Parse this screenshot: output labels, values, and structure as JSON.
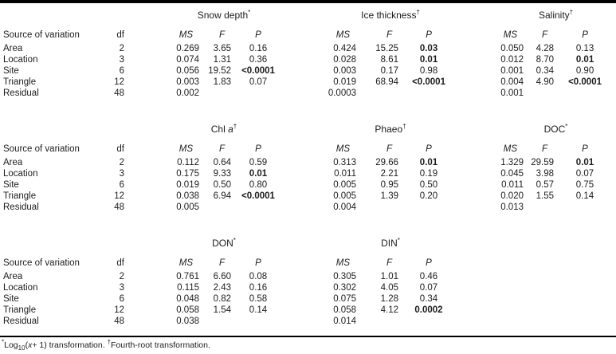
{
  "table": {
    "source_header": "Source of variation",
    "df_header": "df",
    "stat_headers": {
      "ms": "MS",
      "f": "F",
      "p": "P"
    },
    "row_labels": [
      "Area",
      "Location",
      "Site",
      "Triangle",
      "Residual"
    ],
    "df_values": [
      "2",
      "3",
      "6",
      "12",
      "48"
    ],
    "sections": [
      {
        "groups": [
          {
            "title": "Snow depth",
            "title_italic": "",
            "mark": "*",
            "ms": [
              "0.269",
              "0.074",
              "0.056",
              "0.003",
              "0.002"
            ],
            "f": [
              "3.65",
              "1.31",
              "19.52",
              "1.83",
              ""
            ],
            "p": [
              "0.16",
              "0.36",
              "<0.0001",
              "0.07",
              ""
            ],
            "p_bold": [
              false,
              false,
              true,
              false,
              false
            ]
          },
          {
            "title": "Ice thickness",
            "title_italic": "",
            "mark": "†",
            "ms": [
              "0.424",
              "0.028",
              "0.003",
              "0.019",
              "0.0003"
            ],
            "f": [
              "15.25",
              "8.61",
              "0.17",
              "68.94",
              ""
            ],
            "p": [
              "0.03",
              "0.01",
              "0.98",
              "<0.0001",
              ""
            ],
            "p_bold": [
              true,
              true,
              false,
              true,
              false
            ]
          },
          {
            "title": "Salinity",
            "title_italic": "",
            "mark": "†",
            "ms": [
              "0.050",
              "0.012",
              "0.001",
              "0.004",
              "0.001"
            ],
            "f": [
              "4.28",
              "8.70",
              "0.34",
              "4.90",
              ""
            ],
            "p": [
              "0.13",
              "0.01",
              "0.90",
              "<0.0001",
              ""
            ],
            "p_bold": [
              false,
              true,
              false,
              true,
              false
            ]
          }
        ]
      },
      {
        "groups": [
          {
            "title": "Chl ",
            "title_italic": "a",
            "mark": "†",
            "ms": [
              "0.112",
              "0.175",
              "0.019",
              "0.038",
              "0.005"
            ],
            "f": [
              "0.64",
              "9.33",
              "0.50",
              "6.94",
              ""
            ],
            "p": [
              "0.59",
              "0.01",
              "0.80",
              "<0.0001",
              ""
            ],
            "p_bold": [
              false,
              true,
              false,
              true,
              false
            ]
          },
          {
            "title": "Phaeo",
            "title_italic": "",
            "mark": "†",
            "ms": [
              "0.313",
              "0.011",
              "0.005",
              "0.005",
              "0.004"
            ],
            "f": [
              "29.66",
              "2.21",
              "0.95",
              "1.39",
              ""
            ],
            "p": [
              "0.01",
              "0.19",
              "0.50",
              "0.20",
              ""
            ],
            "p_bold": [
              true,
              false,
              false,
              false,
              false
            ]
          },
          {
            "title": "DOC",
            "title_italic": "",
            "mark": "*",
            "ms": [
              "1.329",
              "0.045",
              "0.011",
              "0.020",
              "0.013"
            ],
            "f": [
              "29.59",
              "3.98",
              "0.57",
              "1.55",
              ""
            ],
            "p": [
              "0.01",
              "0.07",
              "0.75",
              "0.14",
              ""
            ],
            "p_bold": [
              true,
              false,
              false,
              false,
              false
            ]
          }
        ]
      },
      {
        "groups": [
          {
            "title": "DON",
            "title_italic": "",
            "mark": "*",
            "ms": [
              "0.761",
              "0.115",
              "0.048",
              "0.058",
              "0.038"
            ],
            "f": [
              "6.60",
              "2.43",
              "0.82",
              "1.54",
              ""
            ],
            "p": [
              "0.08",
              "0.16",
              "0.58",
              "0.14",
              ""
            ],
            "p_bold": [
              false,
              false,
              false,
              false,
              false
            ]
          },
          {
            "title": "DIN",
            "title_italic": "",
            "mark": "*",
            "ms": [
              "0.305",
              "0.302",
              "0.075",
              "0.058",
              "0.014"
            ],
            "f": [
              "1.01",
              "4.05",
              "1.28",
              "4.12",
              ""
            ],
            "p": [
              "0.46",
              "0.07",
              "0.34",
              "0.0002",
              ""
            ],
            "p_bold": [
              false,
              false,
              false,
              true,
              false
            ]
          }
        ]
      }
    ],
    "footnote": {
      "mark1": "*",
      "log": "Log",
      "log_sub": "10",
      "paren_open": "(",
      "var": "x",
      "rest1": "+ 1) transformation. ",
      "mark2": "†",
      "text2": "Fourth-root transformation."
    }
  }
}
